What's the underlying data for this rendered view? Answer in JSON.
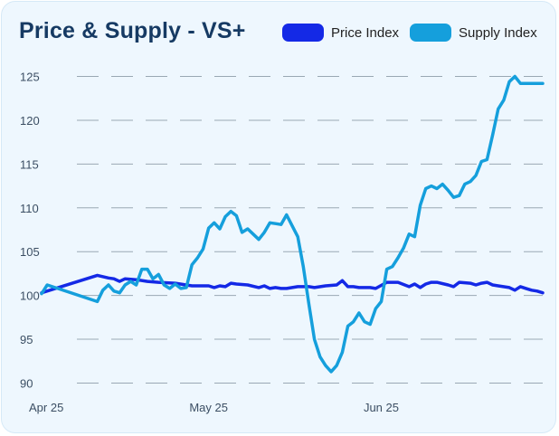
{
  "colors": {
    "price": "#1429e6",
    "supply": "#159fdc",
    "grid": "#9aa8b4",
    "card": "#eef7fe"
  },
  "chart_data": {
    "type": "line",
    "title": "Price & Supply - VS+",
    "xlabel": "",
    "ylabel": "",
    "ylim": [
      88.5,
      126.5
    ],
    "yticks": [
      90,
      95,
      100,
      105,
      110,
      115,
      120,
      125
    ],
    "xlim": [
      "2025-04-01",
      "2025-06-30"
    ],
    "xticks": [
      {
        "date": "2025-04-01",
        "label": "Apr 25"
      },
      {
        "date": "2025-05-01",
        "label": "May 25"
      },
      {
        "date": "2025-06-01",
        "label": "Jun 25"
      }
    ],
    "grid": "horizontal dashed",
    "legend": "top-right",
    "series": [
      {
        "name": "Price Index",
        "color": "#1429e6",
        "x": [
          "2025-04-01",
          "2025-04-11",
          "2025-04-13",
          "2025-04-14",
          "2025-04-15",
          "2025-04-16",
          "2025-04-18",
          "2025-04-20",
          "2025-04-22",
          "2025-04-25",
          "2025-04-28",
          "2025-05-01",
          "2025-05-02",
          "2025-05-03",
          "2025-05-04",
          "2025-05-05",
          "2025-05-06",
          "2025-05-08",
          "2025-05-10",
          "2025-05-11",
          "2025-05-12",
          "2025-05-13",
          "2025-05-14",
          "2025-05-15",
          "2025-05-17",
          "2025-05-19",
          "2025-05-20",
          "2025-05-22",
          "2025-05-24",
          "2025-05-25",
          "2025-05-26",
          "2025-05-27",
          "2025-05-28",
          "2025-05-29",
          "2025-05-30",
          "2025-05-31",
          "2025-06-02",
          "2025-06-04",
          "2025-06-06",
          "2025-06-07",
          "2025-06-08",
          "2025-06-09",
          "2025-06-10",
          "2025-06-11",
          "2025-06-13",
          "2025-06-14",
          "2025-06-15",
          "2025-06-17",
          "2025-06-18",
          "2025-06-19",
          "2025-06-20",
          "2025-06-21",
          "2025-06-22",
          "2025-06-24",
          "2025-06-25",
          "2025-06-26",
          "2025-06-27",
          "2025-06-28",
          "2025-06-29",
          "2025-06-30"
        ],
        "y": [
          100.3,
          102.3,
          102.0,
          101.9,
          101.6,
          101.9,
          101.8,
          101.6,
          101.5,
          101.4,
          101.1,
          101.1,
          100.9,
          101.1,
          101.0,
          101.4,
          101.3,
          101.2,
          100.9,
          101.1,
          100.8,
          100.9,
          100.8,
          100.8,
          101.0,
          101.0,
          100.9,
          101.1,
          101.2,
          101.7,
          101.0,
          101.0,
          100.9,
          100.9,
          100.9,
          100.8,
          101.5,
          101.5,
          101.0,
          101.3,
          100.9,
          101.3,
          101.5,
          101.5,
          101.2,
          101.0,
          101.5,
          101.4,
          101.2,
          101.4,
          101.5,
          101.2,
          101.1,
          100.9,
          100.6,
          101.0,
          100.8,
          100.6,
          100.5,
          100.3
        ]
      },
      {
        "name": "Supply Index",
        "color": "#159fdc",
        "x": [
          "2025-04-01",
          "2025-04-02",
          "2025-04-11",
          "2025-04-12",
          "2025-04-13",
          "2025-04-14",
          "2025-04-15",
          "2025-04-16",
          "2025-04-17",
          "2025-04-18",
          "2025-04-19",
          "2025-04-20",
          "2025-04-21",
          "2025-04-22",
          "2025-04-23",
          "2025-04-24",
          "2025-04-25",
          "2025-04-26",
          "2025-04-27",
          "2025-04-28",
          "2025-04-29",
          "2025-04-30",
          "2025-05-01",
          "2025-05-02",
          "2025-05-03",
          "2025-05-04",
          "2025-05-05",
          "2025-05-06",
          "2025-05-07",
          "2025-05-08",
          "2025-05-09",
          "2025-05-10",
          "2025-05-11",
          "2025-05-12",
          "2025-05-13",
          "2025-05-14",
          "2025-05-15",
          "2025-05-17",
          "2025-05-18",
          "2025-05-19",
          "2025-05-20",
          "2025-05-21",
          "2025-05-22",
          "2025-05-23",
          "2025-05-24",
          "2025-05-25",
          "2025-05-26",
          "2025-05-27",
          "2025-05-28",
          "2025-05-29",
          "2025-05-30",
          "2025-05-31",
          "2025-06-01",
          "2025-06-02",
          "2025-06-03",
          "2025-06-04",
          "2025-06-05",
          "2025-06-06",
          "2025-06-07",
          "2025-06-08",
          "2025-06-09",
          "2025-06-10",
          "2025-06-11",
          "2025-06-12",
          "2025-06-13",
          "2025-06-14",
          "2025-06-15",
          "2025-06-16",
          "2025-06-17",
          "2025-06-18",
          "2025-06-19",
          "2025-06-20",
          "2025-06-21",
          "2025-06-22",
          "2025-06-23",
          "2025-06-24",
          "2025-06-25",
          "2025-06-26",
          "2025-06-27",
          "2025-06-28",
          "2025-06-29",
          "2025-06-30"
        ],
        "y": [
          100.2,
          101.2,
          99.3,
          100.6,
          101.2,
          100.5,
          100.3,
          101.2,
          101.6,
          101.2,
          103.0,
          103.0,
          101.9,
          102.4,
          101.2,
          100.8,
          101.3,
          100.8,
          100.9,
          103.5,
          104.3,
          105.3,
          107.7,
          108.3,
          107.6,
          109.0,
          109.6,
          109.1,
          107.2,
          107.6,
          107.0,
          106.4,
          107.2,
          108.3,
          108.2,
          108.1,
          109.2,
          106.7,
          103.3,
          99.0,
          95.0,
          93.0,
          92.0,
          91.3,
          92.0,
          93.5,
          96.5,
          97.0,
          98.0,
          97.0,
          96.7,
          98.5,
          99.3,
          103.0,
          103.3,
          104.3,
          105.4,
          107.0,
          106.7,
          110.3,
          112.2,
          112.5,
          112.2,
          112.7,
          112.0,
          111.2,
          111.4,
          112.7,
          113.0,
          113.7,
          115.3,
          115.5,
          118.3,
          121.3,
          122.3,
          124.4,
          125.0,
          124.2,
          124.2,
          124.2,
          124.2,
          124.2
        ]
      }
    ]
  }
}
